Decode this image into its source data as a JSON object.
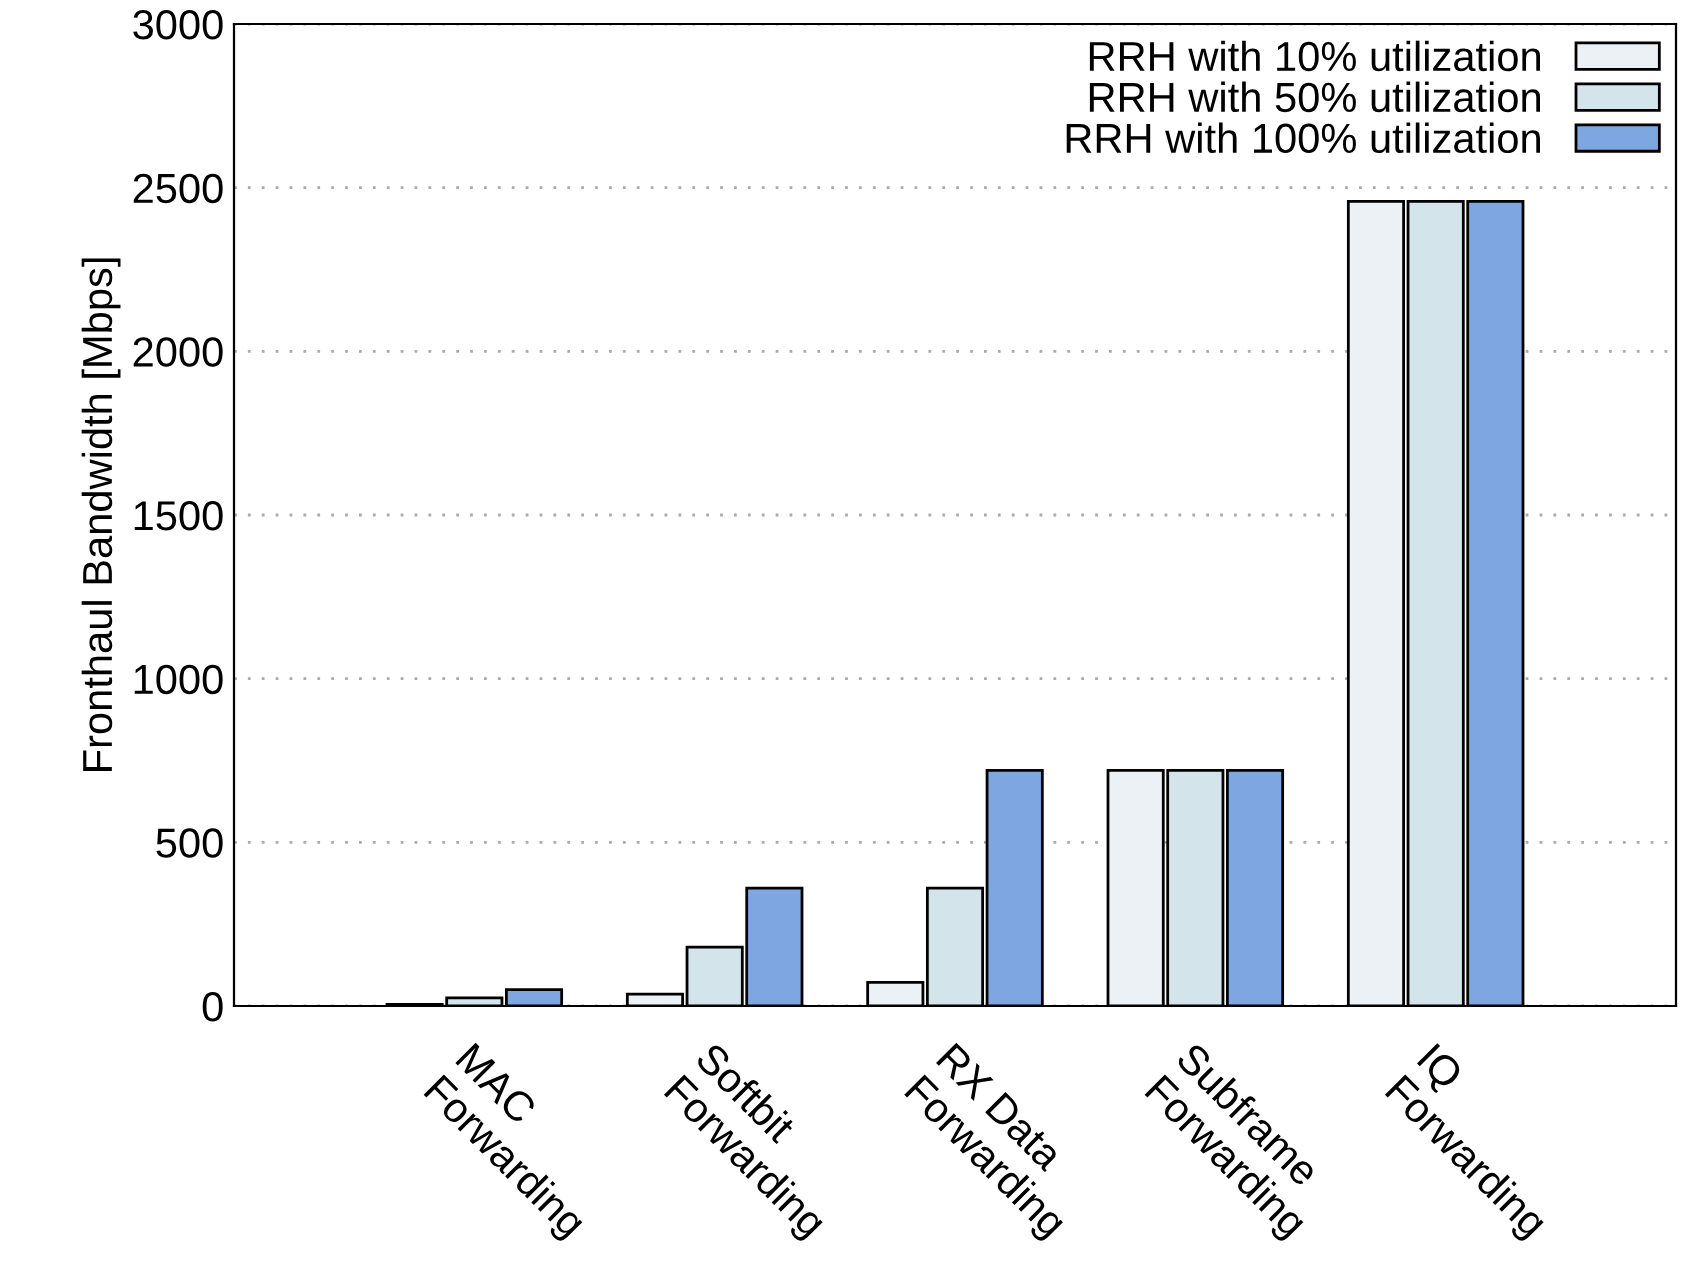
{
  "chart_data": {
    "type": "bar",
    "ylabel": "Fronthaul Bandwidth [Mbps]",
    "categories": [
      "MAC\nForwarding",
      "Softbit\nForwarding",
      "RX Data\nForwarding",
      "Subframe\nForwarding",
      "IQ\nForwarding"
    ],
    "series": [
      {
        "name": "RRH with 10% utilization",
        "color": "#ecf1f5",
        "values": [
          5,
          36,
          72,
          720,
          2458
        ]
      },
      {
        "name": "RRH with 50% utilization",
        "color": "#d3e4eb",
        "values": [
          25,
          180,
          360,
          720,
          2458
        ]
      },
      {
        "name": "RRH with 100% utilization",
        "color": "#7ea6e0",
        "values": [
          50,
          360,
          720,
          720,
          2458
        ]
      }
    ],
    "ylim": [
      0,
      3000
    ],
    "yticks": [
      0,
      500,
      1000,
      1500,
      2000,
      2500,
      3000
    ],
    "grid": "y",
    "legend": "top right"
  }
}
